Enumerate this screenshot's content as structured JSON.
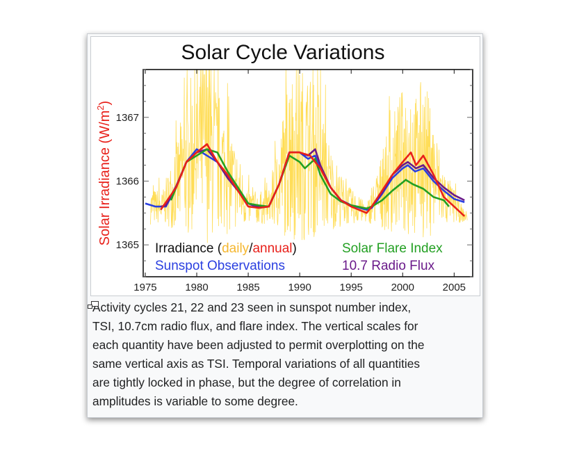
{
  "chart_data": {
    "type": "line",
    "title": "Solar Cycle Variations",
    "ylabel": "Solar Irradiance (W/m²)",
    "ylabel_parts": {
      "main": "Solar Irradiance (W/m",
      "sup": "2",
      "end": ")"
    },
    "xlabel": "",
    "xlim": [
      1974.8,
      2006.8
    ],
    "ylim": [
      1364.5,
      1367.75
    ],
    "xticks": [
      1975,
      1980,
      1985,
      1990,
      1995,
      2000,
      2005
    ],
    "yticks": [
      1365,
      1366,
      1367
    ],
    "grid": false,
    "legend": {
      "irradiance": "Irradiance (",
      "daily": "daily",
      "slash": "/",
      "annual": "annual",
      "close": ")",
      "sunspot": "Sunspot Observations",
      "flare": "Solar Flare Index",
      "radio": "10.7 Radio Flux"
    },
    "colors": {
      "daily": "#ffd21f",
      "annual": "#e8201a",
      "sunspot": "#2a3fe0",
      "flare": "#23a023",
      "radio": "#6a1a8a",
      "ylabel": "#e8201a"
    },
    "series": [
      {
        "name": "Sunspot Observations",
        "color": "#2a3fe0",
        "points": [
          [
            1975,
            1365.65
          ],
          [
            1976,
            1365.6
          ],
          [
            1977,
            1365.6
          ],
          [
            1978,
            1365.9
          ],
          [
            1979,
            1366.3
          ],
          [
            1980,
            1366.5
          ],
          [
            1981,
            1366.4
          ],
          [
            1982,
            1366.3
          ],
          [
            1983,
            1366.05
          ],
          [
            1984,
            1365.85
          ],
          [
            1985,
            1365.65
          ],
          [
            1986,
            1365.58
          ],
          [
            1987,
            1365.6
          ],
          [
            1988,
            1365.95
          ],
          [
            1989,
            1366.45
          ],
          [
            1990,
            1366.45
          ],
          [
            1990.8,
            1366.35
          ],
          [
            1991.5,
            1366.4
          ],
          [
            1992,
            1366.2
          ],
          [
            1993,
            1365.9
          ],
          [
            1994,
            1365.7
          ],
          [
            1995,
            1365.62
          ],
          [
            1996.5,
            1365.55
          ],
          [
            1997,
            1365.58
          ],
          [
            1998,
            1365.8
          ],
          [
            1999,
            1366.05
          ],
          [
            2000,
            1366.2
          ],
          [
            2000.5,
            1366.25
          ],
          [
            2001.2,
            1366.15
          ],
          [
            2002,
            1366.2
          ],
          [
            2003,
            1366.0
          ],
          [
            2004,
            1365.85
          ],
          [
            2005,
            1365.72
          ],
          [
            2006,
            1365.67
          ]
        ]
      },
      {
        "name": "10.7 Radio Flux",
        "color": "#6a1a8a",
        "points": [
          [
            1976.5,
            1365.6
          ],
          [
            1977,
            1365.62
          ],
          [
            1978,
            1365.92
          ],
          [
            1979,
            1366.3
          ],
          [
            1980,
            1366.45
          ],
          [
            1981,
            1366.5
          ],
          [
            1982,
            1366.3
          ],
          [
            1983,
            1366.05
          ],
          [
            1984,
            1365.85
          ],
          [
            1985,
            1365.65
          ],
          [
            1986,
            1365.6
          ],
          [
            1987,
            1365.6
          ],
          [
            1988,
            1365.95
          ],
          [
            1989,
            1366.45
          ],
          [
            1990,
            1366.45
          ],
          [
            1990.8,
            1366.4
          ],
          [
            1991.5,
            1366.5
          ],
          [
            1992,
            1366.25
          ],
          [
            1993,
            1365.9
          ],
          [
            1994,
            1365.7
          ],
          [
            1995,
            1365.62
          ],
          [
            1996.5,
            1365.57
          ],
          [
            1997,
            1365.6
          ],
          [
            1998,
            1365.82
          ],
          [
            1999,
            1366.1
          ],
          [
            2000,
            1366.25
          ],
          [
            2000.5,
            1366.3
          ],
          [
            2001.3,
            1366.2
          ],
          [
            2002,
            1366.25
          ],
          [
            2003,
            1366.05
          ],
          [
            2004,
            1365.9
          ],
          [
            2005,
            1365.78
          ],
          [
            2006,
            1365.7
          ]
        ]
      },
      {
        "name": "Solar Flare Index",
        "color": "#23a023",
        "points": [
          [
            1977.5,
            1365.7
          ],
          [
            1978,
            1365.9
          ],
          [
            1979,
            1366.3
          ],
          [
            1980,
            1366.4
          ],
          [
            1981,
            1366.5
          ],
          [
            1982,
            1366.45
          ],
          [
            1983,
            1366.15
          ],
          [
            1984,
            1365.9
          ],
          [
            1985,
            1365.65
          ],
          [
            1986,
            1365.62
          ],
          [
            1987,
            1365.6
          ],
          [
            1988,
            1365.95
          ],
          [
            1989,
            1366.4
          ],
          [
            1990,
            1366.3
          ],
          [
            1990.5,
            1366.2
          ],
          [
            1991.5,
            1366.35
          ],
          [
            1992,
            1366.1
          ],
          [
            1993,
            1365.8
          ],
          [
            1994,
            1365.68
          ],
          [
            1995,
            1365.62
          ],
          [
            1996.5,
            1365.57
          ],
          [
            1997,
            1365.6
          ],
          [
            1998,
            1365.7
          ],
          [
            1999,
            1365.85
          ],
          [
            2000,
            1365.98
          ],
          [
            2000.3,
            1366.02
          ],
          [
            2001,
            1365.95
          ],
          [
            2002,
            1365.88
          ],
          [
            2003,
            1365.75
          ],
          [
            2004,
            1365.7
          ],
          [
            2004.5,
            1365.6
          ]
        ]
      },
      {
        "name": "annual",
        "color": "#e8201a",
        "points": [
          [
            1976.5,
            1365.55
          ],
          [
            1978,
            1365.9
          ],
          [
            1979,
            1366.3
          ],
          [
            1980,
            1366.45
          ],
          [
            1981,
            1366.58
          ],
          [
            1982,
            1366.3
          ],
          [
            1983,
            1366.1
          ],
          [
            1984,
            1365.85
          ],
          [
            1985,
            1365.6
          ],
          [
            1986,
            1365.58
          ],
          [
            1987,
            1365.6
          ],
          [
            1988,
            1365.95
          ],
          [
            1989,
            1366.45
          ],
          [
            1990,
            1366.45
          ],
          [
            1991,
            1366.4
          ],
          [
            1992,
            1366.2
          ],
          [
            1993,
            1365.9
          ],
          [
            1994,
            1365.7
          ],
          [
            1995,
            1365.6
          ],
          [
            1996.5,
            1365.5
          ],
          [
            1997,
            1365.6
          ],
          [
            1998,
            1365.85
          ],
          [
            1999,
            1366.1
          ],
          [
            2000,
            1366.3
          ],
          [
            2000.8,
            1366.45
          ],
          [
            2001.3,
            1366.25
          ],
          [
            2002,
            1366.4
          ],
          [
            2003,
            1366.1
          ],
          [
            2004,
            1365.75
          ],
          [
            2005,
            1365.6
          ],
          [
            2006,
            1365.45
          ]
        ]
      }
    ]
  },
  "caption": {
    "lines": [
      "Activity cycles 21, 22 and 23 seen in sunspot number index,",
      "TSI, 10.7cm radio flux, and flare index. The vertical scales for",
      "each quantity have been adjusted to permit overplotting on the",
      "same vertical axis as TSI. Temporal variations of all quantities",
      "are tightly locked in phase, but the degree of correlation in",
      "amplitudes is variable to some degree."
    ],
    "enlarge_icon": "magnify-clip-icon"
  }
}
